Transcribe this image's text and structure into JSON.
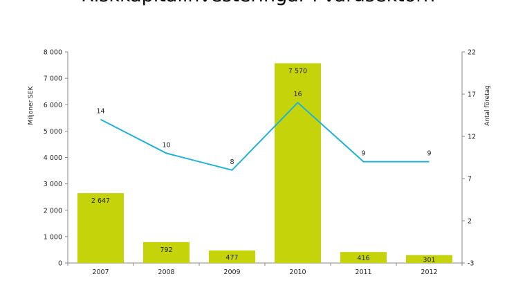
{
  "chart_data": {
    "type": "bar+line",
    "title": "Riskkapitalinvesteringar i vårdsektorn",
    "categories": [
      "2007",
      "2008",
      "2009",
      "2010",
      "2011",
      "2012"
    ],
    "series": [
      {
        "name": "",
        "axis": "left",
        "kind": "bar",
        "values": [
          2647,
          792,
          477,
          7570,
          416,
          301
        ],
        "labels": [
          "2 647",
          "792",
          "477",
          "7 570",
          "416",
          "301"
        ]
      },
      {
        "name": "",
        "axis": "right",
        "kind": "line",
        "values": [
          14,
          10,
          8,
          16,
          9,
          9
        ],
        "labels": [
          "14",
          "10",
          "8",
          "16",
          "9",
          "9"
        ]
      }
    ],
    "ylabel": "Miljoner SEK",
    "y2label": "Antal företag",
    "ylim": [
      0,
      8000
    ],
    "y2lim": [
      -3,
      22
    ],
    "yticks": [
      "0",
      "1 000",
      "2 000",
      "3 000",
      "4 000",
      "5 000",
      "6 000",
      "7 000",
      "8 000"
    ],
    "y2ticks": [
      "-3",
      "2",
      "7",
      "12",
      "17",
      "22"
    ],
    "grid": false,
    "colors": {
      "bar": "#c5d40a",
      "line": "#1fb2d6"
    }
  }
}
